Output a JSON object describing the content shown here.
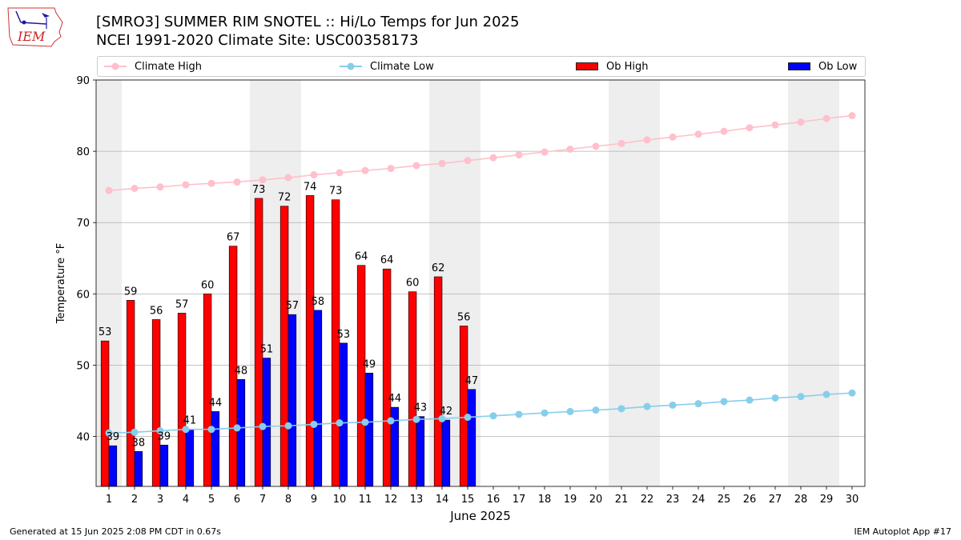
{
  "header": {
    "title_line1": "[SMRO3] SUMMER RIM SNOTEL :: Hi/Lo Temps for Jun 2025",
    "title_line2": "NCEI 1991-2020 Climate Site: USC00358173",
    "logo_text": "IEM"
  },
  "footer": {
    "generated": "Generated at 15 Jun 2025 2:08 PM CDT in 0.67s",
    "app": "IEM Autoplot App #17"
  },
  "legend": {
    "climate_high": "Climate High",
    "climate_low": "Climate Low",
    "ob_high": "Ob High",
    "ob_low": "Ob Low"
  },
  "colors": {
    "climate_high": "#ffc0cb",
    "climate_low": "#87ceeb",
    "ob_high": "#ff0000",
    "ob_low": "#0000ff",
    "weekend_band": "#eeeeee",
    "grid": "#b0b0b0"
  },
  "chart_data": {
    "type": "bar",
    "xlabel": "June 2025",
    "ylabel": "Temperature °F",
    "ylim": [
      33,
      90
    ],
    "yticks": [
      40,
      50,
      60,
      70,
      80,
      90
    ],
    "grid": true,
    "legend_position": "top",
    "days": [
      1,
      2,
      3,
      4,
      5,
      6,
      7,
      8,
      9,
      10,
      11,
      12,
      13,
      14,
      15,
      16,
      17,
      18,
      19,
      20,
      21,
      22,
      23,
      24,
      25,
      26,
      27,
      28,
      29,
      30
    ],
    "weekend_bands": [
      [
        1,
        1
      ],
      [
        7,
        8
      ],
      [
        14,
        15
      ],
      [
        21,
        22
      ],
      [
        28,
        29
      ]
    ],
    "series": [
      {
        "name": "Ob High",
        "kind": "bar",
        "values": [
          53.4,
          59.1,
          56.4,
          57.3,
          60.0,
          66.7,
          73.4,
          72.3,
          73.8,
          73.2,
          64.0,
          63.5,
          60.3,
          62.4,
          55.5
        ]
      },
      {
        "name": "Ob Low",
        "kind": "bar",
        "values": [
          38.7,
          37.9,
          38.8,
          41.0,
          43.5,
          48.0,
          51.0,
          57.1,
          57.7,
          53.1,
          48.9,
          44.1,
          42.8,
          42.3,
          46.6
        ]
      },
      {
        "name": "Climate High",
        "kind": "line",
        "values": [
          74.5,
          74.8,
          75.0,
          75.3,
          75.5,
          75.7,
          76.0,
          76.3,
          76.7,
          77.0,
          77.3,
          77.6,
          78.0,
          78.3,
          78.7,
          79.1,
          79.5,
          79.9,
          80.3,
          80.7,
          81.1,
          81.6,
          82.0,
          82.4,
          82.8,
          83.3,
          83.7,
          84.1,
          84.6,
          85.0
        ]
      },
      {
        "name": "Climate Low",
        "kind": "line",
        "values": [
          40.5,
          40.6,
          40.8,
          41.0,
          41.0,
          41.2,
          41.4,
          41.5,
          41.7,
          41.9,
          42.0,
          42.2,
          42.4,
          42.5,
          42.7,
          42.9,
          43.1,
          43.3,
          43.5,
          43.7,
          43.9,
          44.2,
          44.4,
          44.6,
          44.9,
          45.1,
          45.4,
          45.6,
          45.9,
          46.1
        ]
      }
    ]
  }
}
